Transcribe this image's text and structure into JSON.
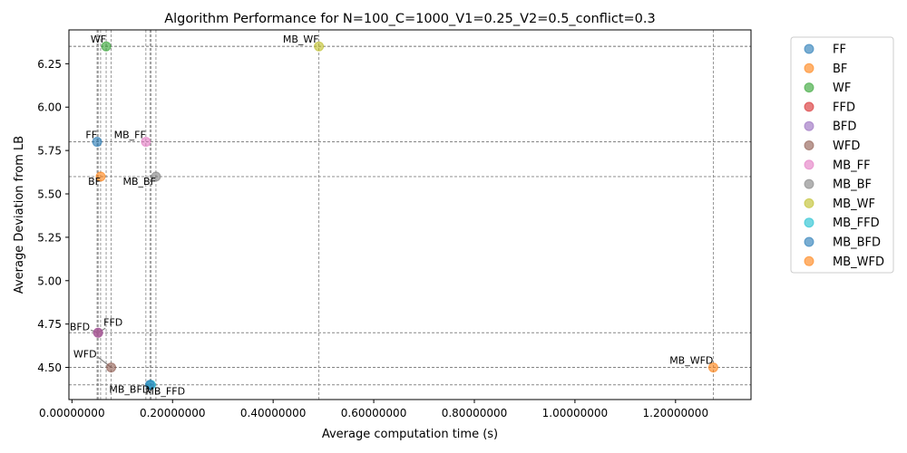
{
  "chart_data": {
    "type": "scatter",
    "title": "Algorithm Performance for N=100_C=1000_V1=0.25_V2=0.5_conflict=0.3",
    "xlabel": "Average computation time (s)",
    "ylabel": "Average Deviation from LB",
    "xlim": [
      -0.006,
      1.35
    ],
    "ylim": [
      4.315,
      6.445
    ],
    "xticks": [
      0.0,
      0.2,
      0.4,
      0.6,
      0.8,
      1.0,
      1.2
    ],
    "xtick_labels": [
      "0.00000000",
      "0.20000000",
      "0.40000000",
      "0.60000000",
      "0.80000000",
      "1.00000000",
      "1.20000000"
    ],
    "yticks": [
      4.5,
      4.75,
      5.0,
      5.25,
      5.5,
      5.75,
      6.0,
      6.25
    ],
    "ytick_labels": [
      "4.50",
      "4.75",
      "5.00",
      "5.25",
      "5.50",
      "5.75",
      "6.00",
      "6.25"
    ],
    "grid": "dashed reference lines at each point",
    "legend_position": "right, outside plot",
    "series": [
      {
        "name": "FF",
        "color": "#1f77b4",
        "x": 0.05,
        "y": 5.8,
        "label": "FF",
        "label_pos": "upper-left"
      },
      {
        "name": "BF",
        "color": "#ff7f0e",
        "x": 0.057,
        "y": 5.6,
        "label": "BF",
        "label_pos": "lower-left"
      },
      {
        "name": "WF",
        "color": "#2ca02c",
        "x": 0.068,
        "y": 6.35,
        "label": "WF",
        "label_pos": "upper-left"
      },
      {
        "name": "FFD",
        "color": "#d62728",
        "x": 0.052,
        "y": 4.7,
        "label": "FFD",
        "label_pos": "arrow-upper-right"
      },
      {
        "name": "BFD",
        "color": "#9467bd",
        "x": 0.052,
        "y": 4.7,
        "label": "BFD",
        "label_pos": "arrow-upper-left"
      },
      {
        "name": "WFD",
        "color": "#8c564b",
        "x": 0.078,
        "y": 4.5,
        "label": "WFD",
        "label_pos": "arrow-upper-left"
      },
      {
        "name": "MB_FF",
        "color": "#e377c2",
        "x": 0.147,
        "y": 5.8,
        "label": "MB_FF",
        "label_pos": "upper-left"
      },
      {
        "name": "MB_BF",
        "color": "#7f7f7f",
        "x": 0.167,
        "y": 5.6,
        "label": "MB_BF",
        "label_pos": "lower-left"
      },
      {
        "name": "MB_WF",
        "color": "#bcbd22",
        "x": 0.491,
        "y": 6.35,
        "label": "MB_WF",
        "label_pos": "upper-left"
      },
      {
        "name": "MB_FFD",
        "color": "#17becf",
        "x": 0.157,
        "y": 4.4,
        "label": "MB_FFD",
        "label_pos": "lower-right"
      },
      {
        "name": "MB_BFD",
        "color": "#1f77b4",
        "x": 0.155,
        "y": 4.4,
        "label": "MB_BFD",
        "label_pos": "lower-left"
      },
      {
        "name": "MB_WFD",
        "color": "#ff7f0e",
        "x": 1.275,
        "y": 4.5,
        "label": "MB_WFD",
        "label_pos": "upper-left"
      }
    ]
  }
}
